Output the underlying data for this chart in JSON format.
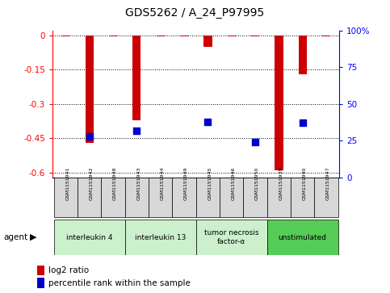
{
  "title": "GDS5262 / A_24_P97995",
  "samples": [
    "GSM1151941",
    "GSM1151942",
    "GSM1151948",
    "GSM1151943",
    "GSM1151944",
    "GSM1151949",
    "GSM1151945",
    "GSM1151946",
    "GSM1151950",
    "GSM1151939",
    "GSM1151940",
    "GSM1151947"
  ],
  "log2_ratio": [
    0.0,
    -0.47,
    0.0,
    -0.37,
    0.0,
    0.0,
    -0.05,
    0.0,
    0.0,
    -0.59,
    -0.17,
    0.0
  ],
  "percentile_rank": [
    null,
    28,
    null,
    32,
    null,
    null,
    38,
    null,
    24,
    null,
    37,
    null
  ],
  "groups": [
    {
      "label": "interleukin 4",
      "start": 0,
      "end": 2,
      "color": "#ccf0cc"
    },
    {
      "label": "interleukin 13",
      "start": 3,
      "end": 5,
      "color": "#ccf0cc"
    },
    {
      "label": "tumor necrosis\nfactor-α",
      "start": 6,
      "end": 8,
      "color": "#ccf0cc"
    },
    {
      "label": "unstimulated",
      "start": 9,
      "end": 11,
      "color": "#55cc55"
    }
  ],
  "ylim_left": [
    -0.62,
    0.02
  ],
  "ylim_right": [
    0,
    100
  ],
  "left_ticks": [
    0,
    -0.15,
    -0.3,
    -0.45,
    -0.6
  ],
  "right_ticks": [
    0,
    25,
    50,
    75,
    100
  ],
  "right_tick_labels": [
    "0",
    "25",
    "50",
    "75",
    "100%"
  ],
  "bar_color": "#cc0000",
  "dot_color": "#0000cc",
  "bg_color": "#d8d8d8",
  "plot_bg": "#ffffff",
  "bar_width": 0.35,
  "dot_size": 28
}
